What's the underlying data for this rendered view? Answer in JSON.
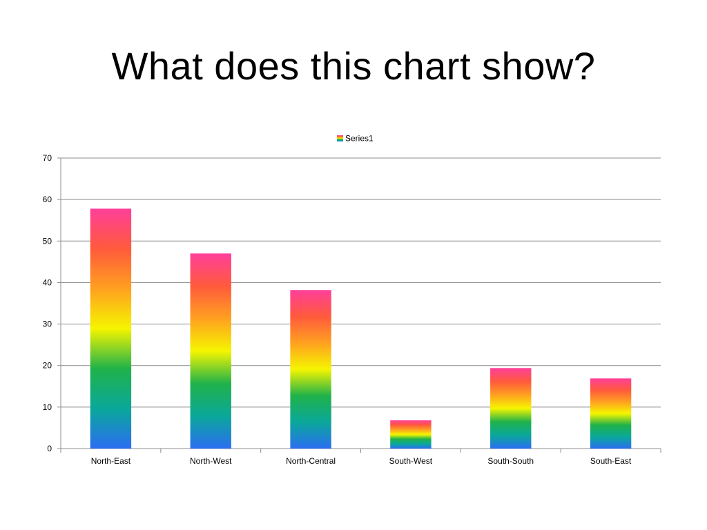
{
  "slide": {
    "title": "What does this chart show?"
  },
  "chart_data": {
    "type": "bar",
    "categories": [
      "North-East",
      "North-West",
      "North-Central",
      "South-West",
      "South-South",
      "South-East"
    ],
    "series": [
      {
        "name": "Series1",
        "values": [
          57.8,
          47,
          38.2,
          6.8,
          19.4,
          16.9
        ]
      }
    ],
    "title": "",
    "xlabel": "",
    "ylabel": "",
    "ylim": [
      0,
      70
    ],
    "yticks": [
      0,
      10,
      20,
      30,
      40,
      50,
      60,
      70
    ],
    "grid": true,
    "legend_position": "top",
    "gradient_colors": [
      "#2b6ef2",
      "#0aa89a",
      "#20b24a",
      "#f5f500",
      "#ffa020",
      "#ff5a3c",
      "#ff3f9a"
    ]
  }
}
